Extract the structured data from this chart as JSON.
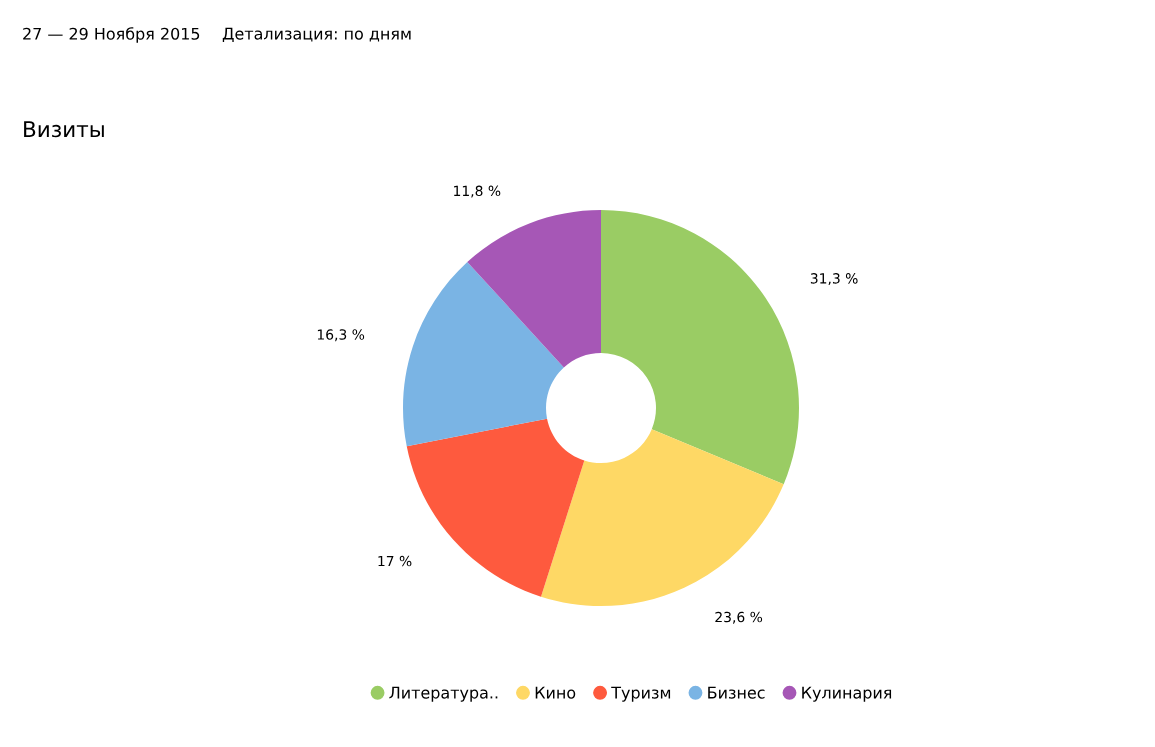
{
  "chart_data": {
    "type": "donut",
    "title": "Визиты",
    "annotations": [
      "27 — 29 Ноября 2015",
      "Детализация: по дням"
    ],
    "categories": [
      "Литература..",
      "Кино",
      "Туризм",
      "Бизнес",
      "Кулинария"
    ],
    "values": [
      31.3,
      23.6,
      17,
      16.3,
      11.8
    ],
    "colors": [
      "#9acc64",
      "#fed865",
      "#fe5a3e",
      "#7ab4e4",
      "#a657b6"
    ],
    "value_labels": [
      "31,3 %",
      "23,6 %",
      "17 %",
      "16,3 %",
      "11,8 %"
    ],
    "legend": "bottom"
  }
}
